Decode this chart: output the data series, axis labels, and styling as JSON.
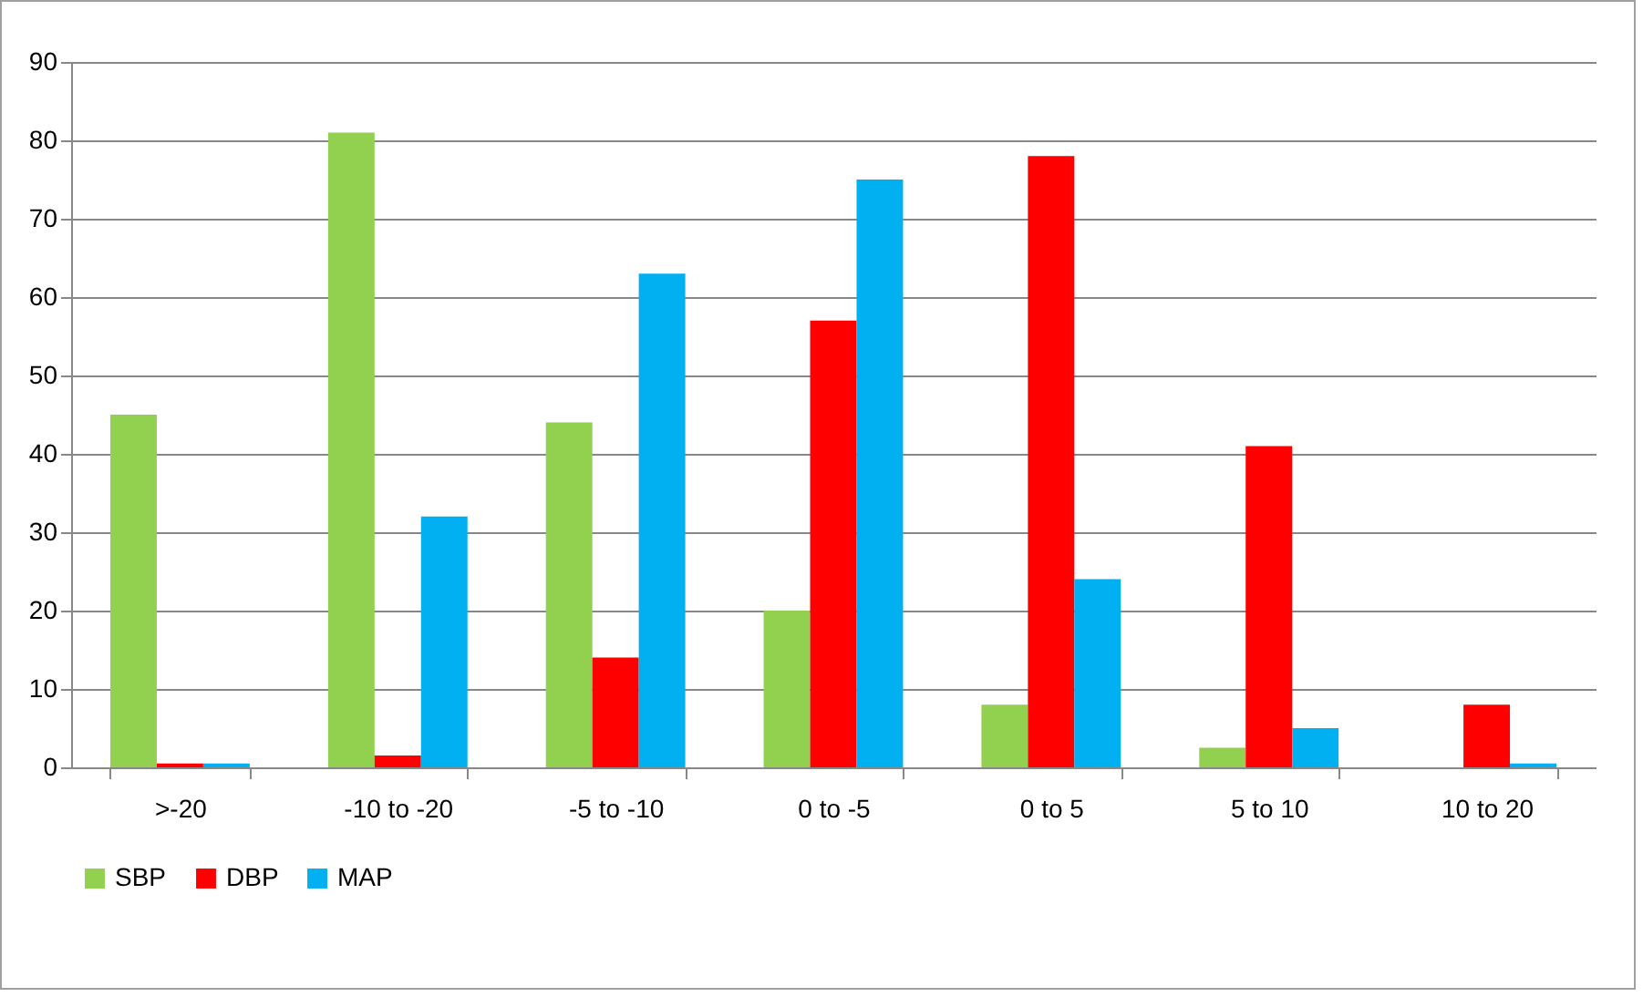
{
  "chart_data": {
    "type": "bar",
    "categories": [
      ">-20",
      "-10 to -20",
      "-5 to -10",
      "0 to -5",
      "0 to 5",
      "5 to 10",
      "10 to 20"
    ],
    "series": [
      {
        "name": "SBP",
        "color": "#92d050",
        "values": [
          45,
          81,
          44,
          20,
          8,
          2.5,
          null
        ]
      },
      {
        "name": "DBP",
        "color": "#ff0000",
        "values": [
          0.5,
          1.5,
          14,
          57,
          78,
          41,
          8
        ]
      },
      {
        "name": "MAP",
        "color": "#00b0f0",
        "values": [
          0.5,
          32,
          63,
          75,
          24,
          5,
          0.5
        ]
      }
    ],
    "ylim": [
      0,
      90
    ],
    "yticks": [
      0,
      10,
      20,
      30,
      40,
      50,
      60,
      70,
      80,
      90
    ],
    "grid": "y",
    "legend": "bottom"
  }
}
